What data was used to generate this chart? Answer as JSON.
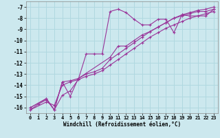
{
  "title": "",
  "xlabel": "Windchill (Refroidissement éolien,°C)",
  "ylabel": "",
  "bg_color": "#cce8ee",
  "grid_color": "#b0d8e0",
  "line_color": "#993399",
  "xlim": [
    -0.5,
    23.5
  ],
  "ylim": [
    -16.5,
    -6.5
  ],
  "xticks": [
    0,
    1,
    2,
    3,
    4,
    5,
    6,
    7,
    8,
    9,
    10,
    11,
    12,
    13,
    14,
    15,
    16,
    17,
    18,
    19,
    20,
    21,
    22,
    23
  ],
  "yticks": [
    -16,
    -15,
    -14,
    -13,
    -12,
    -11,
    -10,
    -9,
    -8,
    -7
  ],
  "lines": [
    {
      "x": [
        0,
        2,
        3,
        4,
        5,
        6,
        10,
        11,
        12,
        13,
        14,
        15,
        16,
        17,
        18,
        19,
        20,
        21,
        22,
        23
      ],
      "y": [
        -16.0,
        -15.2,
        -16.2,
        -13.7,
        -15.0,
        -13.4,
        -11.5,
        -10.5,
        -10.5,
        -10.0,
        -9.5,
        -9.2,
        -8.8,
        -8.4,
        -8.0,
        -7.8,
        -7.6,
        -7.4,
        -7.4,
        -7.2
      ]
    },
    {
      "x": [
        0,
        2,
        3,
        4,
        5,
        6,
        7,
        8,
        9,
        10,
        11,
        12,
        13,
        14,
        15,
        16,
        17,
        18,
        19,
        20,
        21,
        22,
        23
      ],
      "y": [
        -16.0,
        -15.2,
        -16.2,
        -13.7,
        -13.6,
        -13.4,
        -13.0,
        -12.8,
        -12.5,
        -11.7,
        -11.2,
        -10.7,
        -10.2,
        -9.7,
        -9.2,
        -8.8,
        -8.4,
        -8.0,
        -7.7,
        -7.5,
        -7.3,
        -7.2,
        -7.0
      ]
    },
    {
      "x": [
        0,
        2,
        3,
        4,
        5,
        6,
        7,
        8,
        9,
        10,
        11,
        12,
        13,
        14,
        15,
        16,
        17,
        18,
        19,
        20,
        21,
        22,
        23
      ],
      "y": [
        -16.2,
        -15.5,
        -15.8,
        -14.0,
        -13.7,
        -13.5,
        -13.2,
        -13.0,
        -12.7,
        -12.2,
        -11.7,
        -11.2,
        -10.7,
        -10.2,
        -9.7,
        -9.3,
        -8.9,
        -8.6,
        -8.3,
        -8.0,
        -7.8,
        -7.6,
        -7.4
      ]
    },
    {
      "x": [
        0,
        1,
        2,
        3,
        4,
        5,
        6,
        7,
        8,
        9,
        10,
        11,
        12,
        13,
        14,
        15,
        16,
        17,
        18,
        19,
        20,
        21,
        22,
        23
      ],
      "y": [
        -16.2,
        -15.7,
        -15.3,
        -16.2,
        -14.9,
        -14.5,
        -13.5,
        -11.2,
        -11.2,
        -11.2,
        -7.4,
        -7.2,
        -7.5,
        -8.1,
        -8.6,
        -8.6,
        -8.1,
        -8.1,
        -9.3,
        -7.7,
        -7.8,
        -7.8,
        -7.8,
        -7.2
      ]
    }
  ]
}
